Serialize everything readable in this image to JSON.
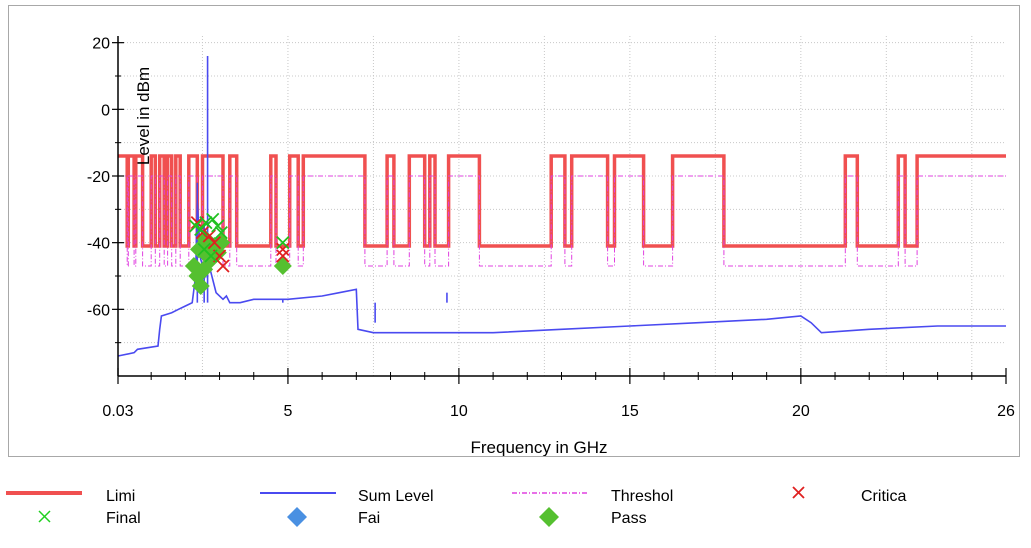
{
  "chart_data": {
    "type": "line",
    "xlabel": "Frequency in GHz",
    "ylabel": "Level in dBm",
    "xlim": [
      0.03,
      26
    ],
    "ylim": [
      -80,
      22
    ],
    "x_ticks": [
      0.03,
      5,
      10,
      15,
      20,
      26
    ],
    "x_tick_labels": [
      "0.03",
      "5",
      "10",
      "15",
      "20",
      "26"
    ],
    "y_ticks": [
      20,
      0,
      -20,
      -40,
      -60
    ],
    "y_tick_labels": [
      "20",
      "0",
      "-20",
      "-40",
      "-60"
    ],
    "grid": true,
    "legend_position": "bottom",
    "legend": [
      "Limi",
      "Sum Level",
      "Threshol",
      "Critica",
      "Final",
      "Fai",
      "Pass"
    ],
    "series": [
      {
        "name": "Limi",
        "kind": "step",
        "color": "#f05050",
        "points": [
          [
            0.03,
            -14
          ],
          [
            0.3,
            -14
          ],
          [
            0.3,
            -41
          ],
          [
            0.33,
            -41
          ],
          [
            0.33,
            -14
          ],
          [
            0.5,
            -14
          ],
          [
            0.5,
            -41
          ],
          [
            0.55,
            -41
          ],
          [
            0.55,
            -14
          ],
          [
            0.75,
            -14
          ],
          [
            0.75,
            -41
          ],
          [
            1.0,
            -41
          ],
          [
            1.0,
            -14
          ],
          [
            1.12,
            -14
          ],
          [
            1.12,
            -41
          ],
          [
            1.25,
            -41
          ],
          [
            1.25,
            -14
          ],
          [
            1.38,
            -14
          ],
          [
            1.38,
            -41
          ],
          [
            1.48,
            -41
          ],
          [
            1.48,
            -14
          ],
          [
            1.6,
            -14
          ],
          [
            1.6,
            -41
          ],
          [
            1.72,
            -41
          ],
          [
            1.72,
            -14
          ],
          [
            1.85,
            -14
          ],
          [
            1.85,
            -41
          ],
          [
            2.1,
            -41
          ],
          [
            2.1,
            -14
          ],
          [
            2.35,
            -14
          ],
          [
            2.35,
            -41
          ],
          [
            2.5,
            -41
          ],
          [
            2.5,
            -14
          ],
          [
            3.1,
            -14
          ],
          [
            3.1,
            -41
          ],
          [
            3.3,
            -41
          ],
          [
            3.3,
            -14
          ],
          [
            3.5,
            -14
          ],
          [
            3.5,
            -41
          ],
          [
            4.5,
            -41
          ],
          [
            4.5,
            -14
          ],
          [
            4.65,
            -14
          ],
          [
            4.65,
            -41
          ],
          [
            5.05,
            -41
          ],
          [
            5.05,
            -14
          ],
          [
            5.3,
            -14
          ],
          [
            5.3,
            -41
          ],
          [
            5.45,
            -41
          ],
          [
            5.45,
            -14
          ],
          [
            7.25,
            -14
          ],
          [
            7.25,
            -41
          ],
          [
            7.9,
            -41
          ],
          [
            7.9,
            -14
          ],
          [
            8.1,
            -14
          ],
          [
            8.1,
            -41
          ],
          [
            8.55,
            -41
          ],
          [
            8.55,
            -14
          ],
          [
            9.0,
            -14
          ],
          [
            9.0,
            -41
          ],
          [
            9.15,
            -41
          ],
          [
            9.15,
            -14
          ],
          [
            9.3,
            -14
          ],
          [
            9.3,
            -41
          ],
          [
            9.7,
            -41
          ],
          [
            9.7,
            -14
          ],
          [
            10.6,
            -14
          ],
          [
            10.6,
            -41
          ],
          [
            12.7,
            -41
          ],
          [
            12.7,
            -14
          ],
          [
            13.1,
            -14
          ],
          [
            13.1,
            -41
          ],
          [
            13.3,
            -41
          ],
          [
            13.3,
            -14
          ],
          [
            14.35,
            -14
          ],
          [
            14.35,
            -41
          ],
          [
            14.55,
            -41
          ],
          [
            14.55,
            -14
          ],
          [
            15.4,
            -14
          ],
          [
            15.4,
            -41
          ],
          [
            16.25,
            -41
          ],
          [
            16.25,
            -14
          ],
          [
            17.75,
            -14
          ],
          [
            17.75,
            -41
          ],
          [
            21.3,
            -41
          ],
          [
            21.3,
            -14
          ],
          [
            21.65,
            -14
          ],
          [
            21.65,
            -41
          ],
          [
            22.85,
            -41
          ],
          [
            22.85,
            -14
          ],
          [
            23.05,
            -14
          ],
          [
            23.05,
            -41
          ],
          [
            23.4,
            -41
          ],
          [
            23.4,
            -14
          ],
          [
            26,
            -14
          ]
        ]
      },
      {
        "name": "Threshol",
        "kind": "step",
        "color": "#e040e0",
        "points": [
          [
            0.03,
            -20
          ],
          [
            0.3,
            -20
          ],
          [
            0.3,
            -47
          ],
          [
            0.33,
            -47
          ],
          [
            0.33,
            -20
          ],
          [
            0.5,
            -20
          ],
          [
            0.5,
            -47
          ],
          [
            0.55,
            -47
          ],
          [
            0.55,
            -20
          ],
          [
            0.75,
            -20
          ],
          [
            0.75,
            -47
          ],
          [
            1.0,
            -47
          ],
          [
            1.0,
            -20
          ],
          [
            1.12,
            -20
          ],
          [
            1.12,
            -47
          ],
          [
            1.25,
            -47
          ],
          [
            1.25,
            -20
          ],
          [
            1.38,
            -20
          ],
          [
            1.38,
            -47
          ],
          [
            1.48,
            -47
          ],
          [
            1.48,
            -20
          ],
          [
            1.6,
            -20
          ],
          [
            1.6,
            -47
          ],
          [
            1.72,
            -47
          ],
          [
            1.72,
            -20
          ],
          [
            1.85,
            -20
          ],
          [
            1.85,
            -47
          ],
          [
            2.1,
            -47
          ],
          [
            2.1,
            -20
          ],
          [
            2.35,
            -20
          ],
          [
            2.35,
            -47
          ],
          [
            2.5,
            -47
          ],
          [
            2.5,
            -20
          ],
          [
            3.1,
            -20
          ],
          [
            3.1,
            -47
          ],
          [
            3.3,
            -47
          ],
          [
            3.3,
            -20
          ],
          [
            3.5,
            -20
          ],
          [
            3.5,
            -47
          ],
          [
            4.5,
            -47
          ],
          [
            4.5,
            -20
          ],
          [
            4.65,
            -20
          ],
          [
            4.65,
            -47
          ],
          [
            5.05,
            -47
          ],
          [
            5.05,
            -20
          ],
          [
            5.3,
            -20
          ],
          [
            5.3,
            -47
          ],
          [
            5.45,
            -47
          ],
          [
            5.45,
            -20
          ],
          [
            7.25,
            -20
          ],
          [
            7.25,
            -47
          ],
          [
            7.9,
            -47
          ],
          [
            7.9,
            -20
          ],
          [
            8.1,
            -20
          ],
          [
            8.1,
            -47
          ],
          [
            8.55,
            -47
          ],
          [
            8.55,
            -20
          ],
          [
            9.0,
            -20
          ],
          [
            9.0,
            -47
          ],
          [
            9.15,
            -47
          ],
          [
            9.15,
            -20
          ],
          [
            9.3,
            -20
          ],
          [
            9.3,
            -47
          ],
          [
            9.7,
            -47
          ],
          [
            9.7,
            -20
          ],
          [
            10.6,
            -20
          ],
          [
            10.6,
            -47
          ],
          [
            12.7,
            -47
          ],
          [
            12.7,
            -20
          ],
          [
            13.1,
            -20
          ],
          [
            13.1,
            -47
          ],
          [
            13.3,
            -47
          ],
          [
            13.3,
            -20
          ],
          [
            14.35,
            -20
          ],
          [
            14.35,
            -47
          ],
          [
            14.55,
            -47
          ],
          [
            14.55,
            -20
          ],
          [
            15.4,
            -20
          ],
          [
            15.4,
            -47
          ],
          [
            16.25,
            -47
          ],
          [
            16.25,
            -20
          ],
          [
            17.75,
            -20
          ],
          [
            17.75,
            -47
          ],
          [
            21.3,
            -47
          ],
          [
            21.3,
            -20
          ],
          [
            21.65,
            -20
          ],
          [
            21.65,
            -47
          ],
          [
            22.85,
            -47
          ],
          [
            22.85,
            -20
          ],
          [
            23.05,
            -20
          ],
          [
            23.05,
            -47
          ],
          [
            23.4,
            -47
          ],
          [
            23.4,
            -20
          ],
          [
            26,
            -20
          ]
        ]
      },
      {
        "name": "Sum Level",
        "kind": "line",
        "color": "#4a4af0",
        "points": [
          [
            0.03,
            -74
          ],
          [
            0.5,
            -73
          ],
          [
            0.6,
            -72
          ],
          [
            1.2,
            -71
          ],
          [
            1.25,
            -66
          ],
          [
            1.3,
            -62
          ],
          [
            1.6,
            -61
          ],
          [
            1.8,
            -60
          ],
          [
            2.0,
            -59
          ],
          [
            2.2,
            -58
          ],
          [
            2.3,
            -50
          ],
          [
            2.35,
            -28
          ],
          [
            2.45,
            -45
          ],
          [
            2.6,
            -50
          ],
          [
            2.7,
            -47
          ],
          [
            2.9,
            -55
          ],
          [
            3.1,
            -57
          ],
          [
            3.2,
            -56
          ],
          [
            3.3,
            -58
          ],
          [
            3.6,
            -58
          ],
          [
            4.0,
            -57
          ],
          [
            4.5,
            -57
          ],
          [
            5.0,
            -57
          ],
          [
            6.0,
            -56
          ],
          [
            6.5,
            -55
          ],
          [
            7.0,
            -54
          ],
          [
            7.05,
            -66
          ],
          [
            7.5,
            -67
          ],
          [
            9.0,
            -67
          ],
          [
            11.0,
            -67
          ],
          [
            13.0,
            -66
          ],
          [
            15.0,
            -65
          ],
          [
            17.0,
            -64
          ],
          [
            19.0,
            -63
          ],
          [
            20.0,
            -62
          ],
          [
            20.3,
            -64
          ],
          [
            20.6,
            -67
          ],
          [
            22.0,
            -66
          ],
          [
            24.0,
            -65
          ],
          [
            26,
            -65
          ]
        ],
        "spikes": [
          [
            2.65,
            16
          ],
          [
            2.35,
            -22
          ],
          [
            2.55,
            -35
          ],
          [
            4.85,
            -57
          ],
          [
            9.65,
            -55
          ],
          [
            7.55,
            -64
          ]
        ]
      }
    ],
    "markers": {
      "Critica": {
        "symbol": "x",
        "color": "#e02020",
        "points": [
          [
            2.35,
            -34
          ],
          [
            2.5,
            -37
          ],
          [
            2.7,
            -38
          ],
          [
            2.85,
            -40
          ],
          [
            3.0,
            -44
          ],
          [
            3.1,
            -47
          ],
          [
            4.85,
            -42
          ],
          [
            4.85,
            -44
          ]
        ]
      },
      "Final": {
        "symbol": "x",
        "color": "#20c020",
        "points": [
          [
            2.3,
            -35
          ],
          [
            2.45,
            -36
          ],
          [
            2.6,
            -34
          ],
          [
            2.8,
            -33
          ],
          [
            2.95,
            -35
          ],
          [
            3.05,
            -37
          ],
          [
            2.55,
            -42
          ],
          [
            2.75,
            -44
          ],
          [
            4.85,
            -40
          ]
        ]
      },
      "Pass": {
        "symbol": "diamond",
        "color": "#55c030",
        "points": [
          [
            2.25,
            -47
          ],
          [
            2.35,
            -50
          ],
          [
            2.45,
            -53
          ],
          [
            2.55,
            -48
          ],
          [
            2.65,
            -44
          ],
          [
            2.75,
            -45
          ],
          [
            2.85,
            -41
          ],
          [
            2.95,
            -43
          ],
          [
            3.05,
            -40
          ],
          [
            2.4,
            -42
          ],
          [
            2.6,
            -39
          ],
          [
            4.85,
            -47
          ]
        ]
      }
    }
  }
}
